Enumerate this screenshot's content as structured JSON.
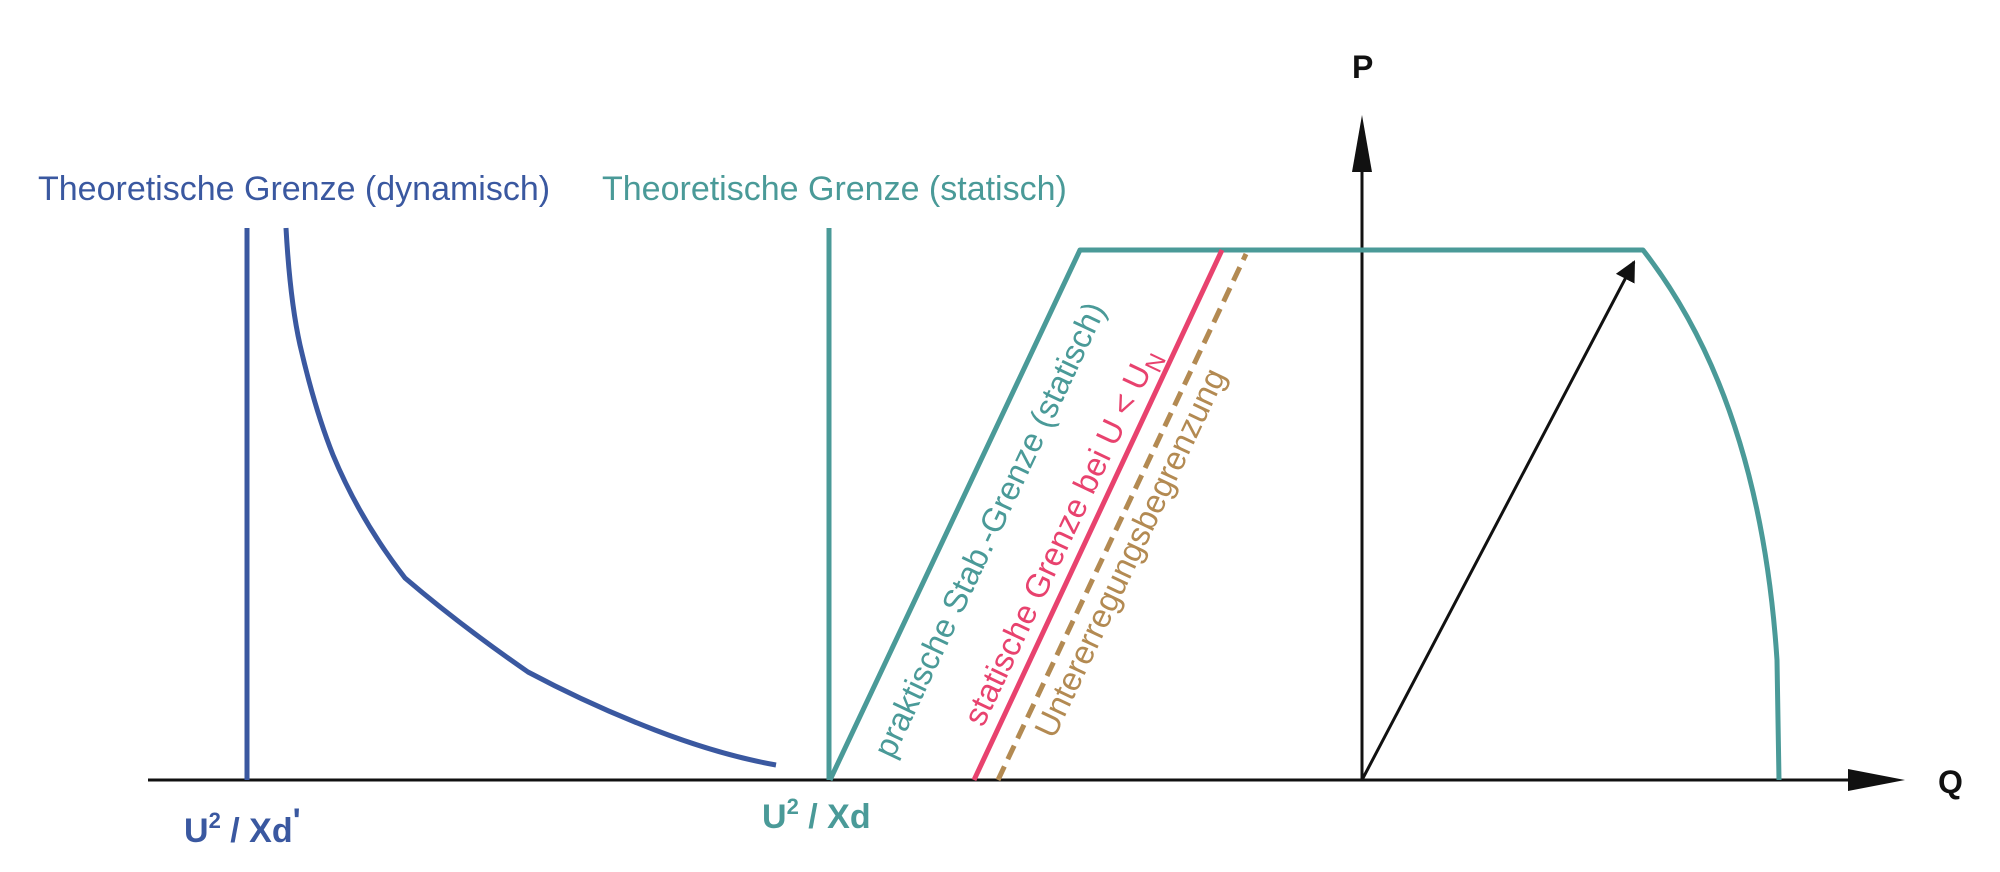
{
  "colors": {
    "dynamic": "#3a58a0",
    "static": "#4a9a98",
    "static_voltage": "#e8426e",
    "underexcitation": "#b38a52",
    "axis": "#111111"
  },
  "axes": {
    "p_label": "P",
    "q_label": "Q"
  },
  "labels": {
    "dynamic_limit": "Theoretische Grenze (dynamisch)",
    "static_limit": "Theoretische Grenze (statisch)",
    "practical_limit": "praktische Stab.-Grenze (statisch)",
    "static_voltage_limit": "statische Grenze bei U < U",
    "static_voltage_limit_sub": "N",
    "underexcitation_limit": "Untererregungsbegrenzung"
  },
  "ticks": {
    "xd_prime": {
      "base": "U",
      "exp": "2",
      "rest": " / Xd",
      "prime": "'"
    },
    "xd": {
      "base": "U",
      "exp": "2",
      "rest": " / Xd"
    }
  }
}
